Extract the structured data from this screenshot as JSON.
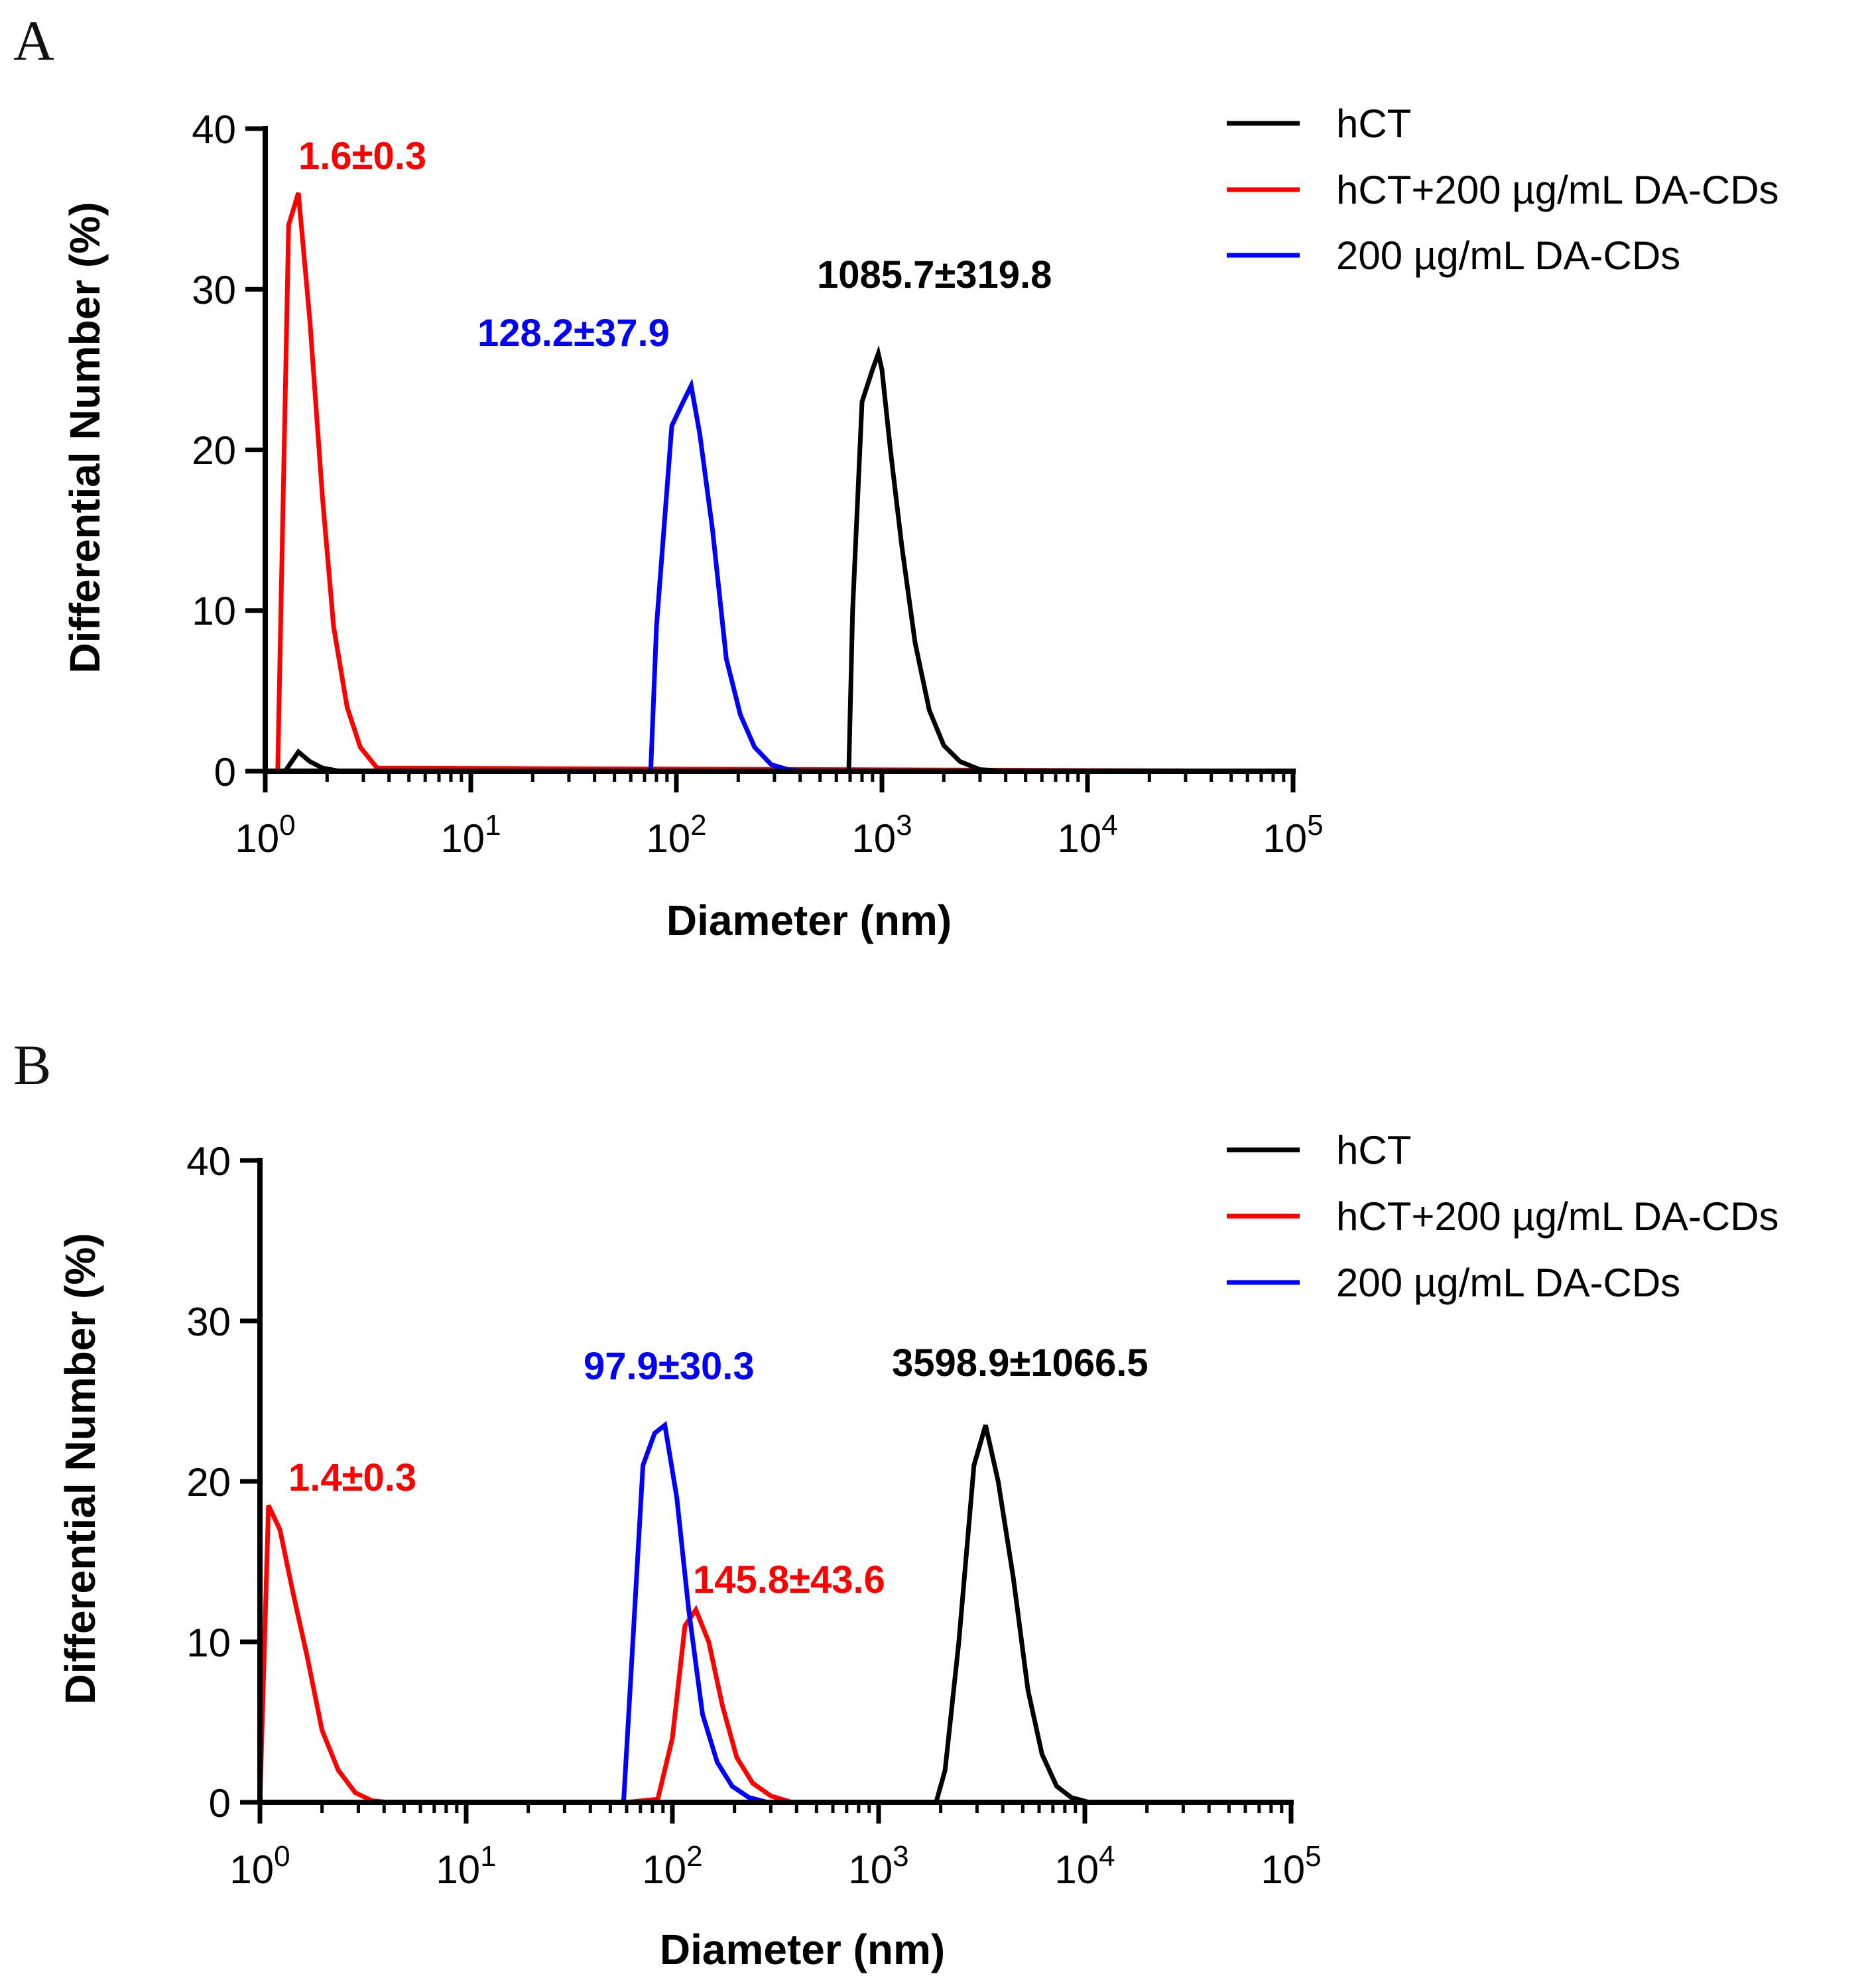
{
  "figure": {
    "panels": [
      {
        "label": "A"
      },
      {
        "label": "B"
      }
    ]
  },
  "colors": {
    "hCT": "#000000",
    "hCT_DA": "#ff0000",
    "DA": "#0000ff"
  },
  "chart_data": [
    {
      "panel": "A",
      "type": "line",
      "xscale": "log",
      "xlabel": "Diameter (nm)",
      "ylabel": "Differential Number (%)",
      "xlim": [
        1,
        100000
      ],
      "ylim": [
        0,
        40
      ],
      "yticks": [
        0,
        10,
        20,
        30,
        40
      ],
      "xticks": [
        {
          "value": 1,
          "base": "10",
          "exp": "0"
        },
        {
          "value": 10,
          "base": "10",
          "exp": "1"
        },
        {
          "value": 100,
          "base": "10",
          "exp": "2"
        },
        {
          "value": 1000,
          "base": "10",
          "exp": "3"
        },
        {
          "value": 10000,
          "base": "10",
          "exp": "4"
        },
        {
          "value": 100000,
          "base": "10",
          "exp": "5"
        }
      ],
      "legend": {
        "position": "top-right",
        "entries": [
          "hCT",
          "hCT+200 µg/mL DA-CDs",
          "200 µg/mL DA-CDs"
        ]
      },
      "series": [
        {
          "name": "hCT",
          "color": "#000000",
          "x": [
            1,
            1.25,
            1.45,
            1.65,
            1.9,
            2.3,
            3,
            690,
            720,
            800,
            900,
            960,
            1000,
            1100,
            1250,
            1450,
            1700,
            2000,
            2400,
            3000,
            4000,
            100000
          ],
          "y": [
            0,
            0,
            1.2,
            0.6,
            0.2,
            0,
            0,
            0,
            10,
            23,
            25,
            26,
            25,
            20,
            14,
            8,
            3.8,
            1.6,
            0.6,
            0.1,
            0,
            0
          ]
        },
        {
          "name": "hCT+200 µg/mL DA-CDs",
          "color": "#ff0000",
          "x": [
            1,
            1.15,
            1.3,
            1.45,
            1.65,
            1.9,
            2.15,
            2.5,
            2.9,
            3.5,
            100000
          ],
          "y": [
            0,
            0,
            34,
            36,
            28,
            17,
            9,
            4,
            1.5,
            0.2,
            0
          ]
        },
        {
          "name": "200 µg/mL DA-CDs",
          "color": "#0000ff",
          "x": [
            1,
            75,
            80,
            95,
            108,
            118,
            130,
            150,
            175,
            205,
            240,
            290,
            350,
            430,
            100000
          ],
          "y": [
            0,
            0,
            9,
            21.5,
            23,
            24,
            21,
            15,
            7,
            3.5,
            1.5,
            0.4,
            0.1,
            0,
            0
          ]
        }
      ],
      "annotations": [
        {
          "text": "1.6±0.3",
          "color": "#ff0000",
          "x": 1.35,
          "y": 38
        },
        {
          "text": "128.2±37.9",
          "color": "#0000ff",
          "x": 12,
          "y": 27
        },
        {
          "text": "1085.7±319.8",
          "color": "#000000",
          "x": 110,
          "y": 30.5
        }
      ]
    },
    {
      "panel": "B",
      "type": "line",
      "xscale": "log",
      "xlabel": "Diameter (nm)",
      "ylabel": "Differential Number (%)",
      "xlim": [
        1,
        100000
      ],
      "ylim": [
        0,
        40
      ],
      "yticks": [
        0,
        10,
        20,
        30,
        40
      ],
      "xticks": [
        {
          "value": 1,
          "base": "10",
          "exp": "0"
        },
        {
          "value": 10,
          "base": "10",
          "exp": "1"
        },
        {
          "value": 100,
          "base": "10",
          "exp": "2"
        },
        {
          "value": 1000,
          "base": "10",
          "exp": "3"
        },
        {
          "value": 10000,
          "base": "10",
          "exp": "4"
        },
        {
          "value": 100000,
          "base": "10",
          "exp": "5"
        }
      ],
      "legend": {
        "position": "top-right",
        "entries": [
          "hCT",
          "hCT+200 µg/mL DA-CDs",
          "200 µg/mL DA-CDs"
        ]
      },
      "series": [
        {
          "name": "hCT",
          "color": "#000000",
          "x": [
            1,
            1900,
            2100,
            2450,
            2900,
            3300,
            3800,
            4500,
            5300,
            6200,
            7300,
            8600,
            10500,
            100000
          ],
          "y": [
            0,
            0,
            2,
            10,
            21,
            23.5,
            20,
            14,
            7,
            3,
            1,
            0.3,
            0,
            0
          ]
        },
        {
          "name": "hCT+200 µg/mL DA-CDs",
          "color": "#ff0000",
          "x": [
            1,
            1.1,
            1.25,
            1.45,
            1.7,
            2.0,
            2.4,
            2.9,
            3.5,
            4.2,
            60,
            85,
            100,
            115,
            130,
            150,
            175,
            205,
            245,
            300,
            380,
            100000
          ],
          "y": [
            0,
            18.5,
            17,
            13,
            9,
            4.5,
            2,
            0.6,
            0.1,
            0,
            0,
            0.2,
            4,
            11,
            12,
            10,
            6,
            2.8,
            1.2,
            0.4,
            0,
            0
          ]
        },
        {
          "name": "200 µg/mL DA-CDs",
          "color": "#0000ff",
          "x": [
            1,
            58,
            63,
            72,
            82,
            92,
            105,
            120,
            140,
            165,
            195,
            235,
            290,
            100000
          ],
          "y": [
            0,
            0,
            8,
            21,
            23,
            23.5,
            19,
            12,
            5.5,
            2.5,
            1,
            0.3,
            0,
            0
          ]
        }
      ],
      "annotations": [
        {
          "text": "1.4±0.3",
          "color": "#ff0000",
          "x": 1.25,
          "y": 20
        },
        {
          "text": "97.9±30.3",
          "color": "#0000ff",
          "x": 27,
          "y": 27
        },
        {
          "text": "3598.9±1066.5",
          "color": "#000000",
          "x": 330,
          "y": 27
        },
        {
          "text": "145.8±43.6",
          "color": "#ff0000",
          "x": 125,
          "y": 13.8
        }
      ]
    }
  ]
}
